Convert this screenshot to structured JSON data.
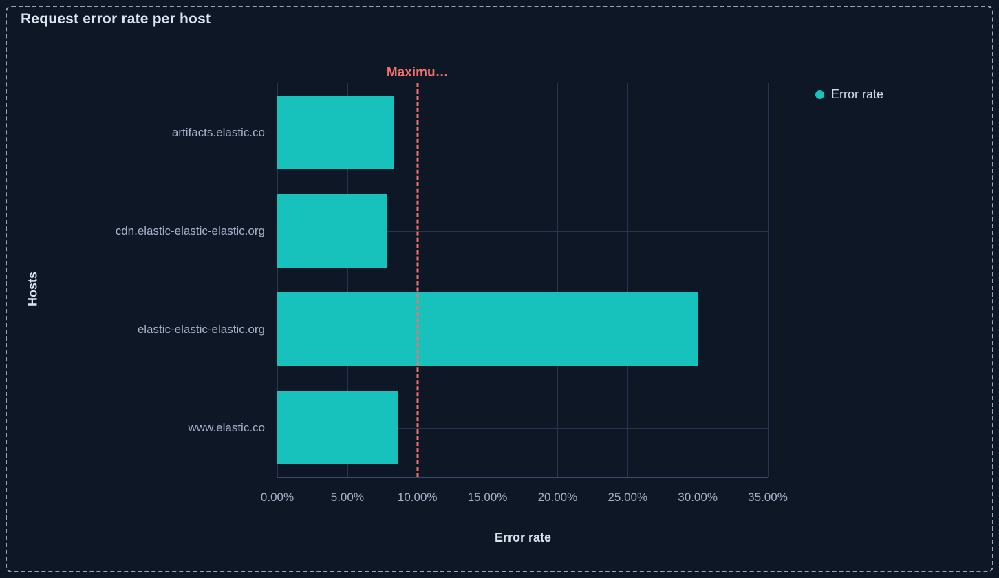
{
  "header": {
    "title": "Request error rate per host"
  },
  "legend": {
    "position": "right",
    "items": [
      {
        "label": "Error rate",
        "color": "#17c2bd"
      }
    ]
  },
  "chart_data": {
    "type": "bar",
    "orientation": "horizontal",
    "title": "Request error rate per host",
    "categories": [
      "artifacts.elastic.co",
      "cdn.elastic-elastic-elastic.org",
      "elastic-elastic-elastic.org",
      "www.elastic.co"
    ],
    "series": [
      {
        "name": "Error rate",
        "values": [
          8.3,
          7.8,
          30.0,
          8.6
        ],
        "unit": "%",
        "color": "#17c2bd"
      }
    ],
    "xlabel": "Error rate",
    "ylabel": "Hosts",
    "xlim": [
      0,
      35
    ],
    "x_tick_values": [
      0,
      5,
      10,
      15,
      20,
      25,
      30,
      35
    ],
    "x_tick_labels": [
      "0.00%",
      "5.00%",
      "10.00%",
      "15.00%",
      "20.00%",
      "25.00%",
      "30.00%",
      "35.00%"
    ],
    "grid": true,
    "legend_position": "top-right",
    "annotation": {
      "label": "Maximu…",
      "value": 10,
      "unit": "%",
      "color": "#f3716c",
      "line_style": "dashed"
    }
  },
  "colors": {
    "background": "#0e1726",
    "frame_border": "#93a5c1",
    "bar": "#17c2bd",
    "threshold": "#f3716c",
    "gridline": "#273450",
    "axis_line": "#3a4a66",
    "title_text": "#dce4f0",
    "tick_text": "#a6b2c8",
    "legend_text": "#d4dce9"
  }
}
